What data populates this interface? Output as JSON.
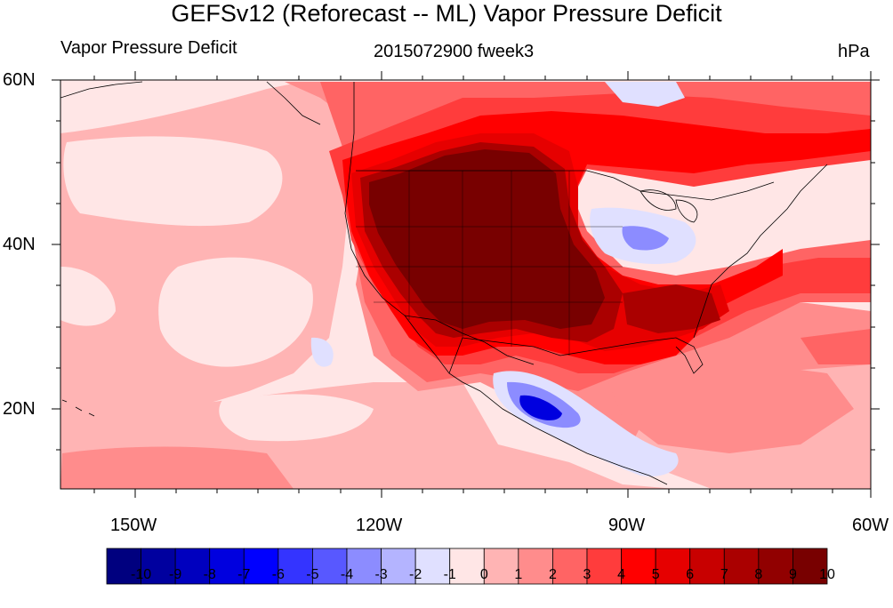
{
  "titles": {
    "main": "GEFSv12 (Reforecast -- ML) Vapor Pressure Deficit",
    "left": "Vapor Pressure Deficit",
    "center": "2015072900 fweek3",
    "right": "hPa"
  },
  "axes": {
    "lat_labels": [
      "60N",
      "40N",
      "20N"
    ],
    "lon_labels": [
      "150W",
      "120W",
      "90W",
      "60W"
    ]
  },
  "colorbar": {
    "labels": [
      "-10",
      "-9",
      "-8",
      "-7",
      "-6",
      "-5",
      "-4",
      "-3",
      "-2",
      "-1",
      "0",
      "1",
      "2",
      "3",
      "4",
      "5",
      "6",
      "7",
      "8",
      "9",
      "10"
    ],
    "colors": [
      "#00007f",
      "#00009f",
      "#0000bf",
      "#0000df",
      "#0000ff",
      "#3434ff",
      "#5858ff",
      "#8c8cff",
      "#b4b4ff",
      "#e0e0ff",
      "#ffe6e6",
      "#ffb4b4",
      "#ff8c8c",
      "#ff6464",
      "#ff3c3c",
      "#ff0000",
      "#e60000",
      "#c80000",
      "#aa0000",
      "#910000",
      "#780000"
    ]
  },
  "map_colors": {
    "ocean_light": "#ffe6e6",
    "pale": "#ffb4b4",
    "pink": "#ff8c8c",
    "salmon": "#ff6464",
    "red": "#ff3c3c",
    "bright_red": "#ff0000",
    "deep_red": "#e60000",
    "dark_red": "#aa0000",
    "darkest": "#780000",
    "light_blue": "#e0e0ff",
    "blue_mid": "#8c8cff",
    "blue_dark": "#0000df"
  }
}
